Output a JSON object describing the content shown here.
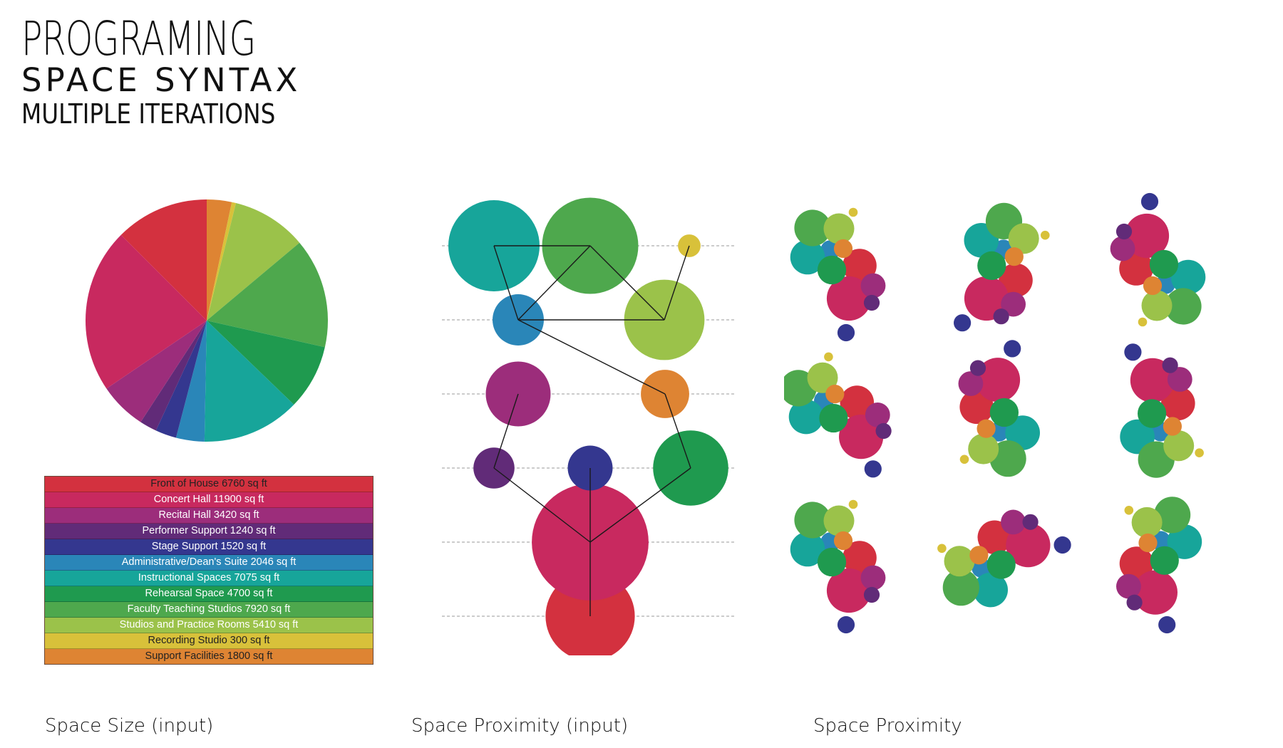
{
  "title": {
    "line1": "PROGRAMING",
    "line2": "SPACE SYNTAX",
    "line3": "MULTIPLE ITERATIONS"
  },
  "captions": {
    "size": "Space Size (input)",
    "proximity_input": "Space Proximity (input)",
    "proximity": "Space Proximity"
  },
  "spaces": [
    {
      "label": "Front of House 6760 sq ft",
      "area": 6760,
      "color": "#d3313f",
      "text_color": "#222222"
    },
    {
      "label": "Concert Hall 11900 sq ft",
      "area": 11900,
      "color": "#c8295f",
      "text_color": "#ffffff"
    },
    {
      "label": "Recital Hall 3420 sq ft",
      "area": 3420,
      "color": "#9c2d7b",
      "text_color": "#ffffff"
    },
    {
      "label": "Performer Support 1240 sq ft",
      "area": 1240,
      "color": "#612b78",
      "text_color": "#ffffff"
    },
    {
      "label": "Stage Support 1520 sq ft",
      "area": 1520,
      "color": "#34378f",
      "text_color": "#ffffff"
    },
    {
      "label": "Administrative/Dean's Suite 2046 sq ft",
      "area": 2046,
      "color": "#2a86b8",
      "text_color": "#ffffff"
    },
    {
      "label": "Instructional Spaces 7075 sq ft",
      "area": 7075,
      "color": "#17a59a",
      "text_color": "#ffffff"
    },
    {
      "label": "Rehearsal Space 4700 sq ft",
      "area": 4700,
      "color": "#1f9a4f",
      "text_color": "#ffffff"
    },
    {
      "label": "Faculty Teaching Studios 7920 sq ft",
      "area": 7920,
      "color": "#4ea84d",
      "text_color": "#ffffff"
    },
    {
      "label": "Studios and Practice Rooms 5410 sq ft",
      "area": 5410,
      "color": "#9bc24a",
      "text_color": "#ffffff"
    },
    {
      "label": "Recording Studio 300 sq ft",
      "area": 300,
      "color": "#d8c13a",
      "text_color": "#222222"
    },
    {
      "label": "Support Facilities 1800 sq ft",
      "area": 1800,
      "color": "#de8433",
      "text_color": "#222222"
    }
  ],
  "pie_order_clockwise_from_top": [
    11,
    10,
    9,
    8,
    7,
    6,
    5,
    4,
    3,
    2,
    1,
    0
  ],
  "proximity_graph": {
    "links": [
      [
        6,
        8
      ],
      [
        6,
        5
      ],
      [
        8,
        5
      ],
      [
        8,
        9
      ],
      [
        10,
        9
      ],
      [
        5,
        9
      ],
      [
        5,
        11
      ],
      [
        11,
        7
      ],
      [
        2,
        3
      ],
      [
        3,
        1
      ],
      [
        4,
        1
      ],
      [
        7,
        1
      ],
      [
        1,
        0
      ]
    ]
  },
  "iterations_count": 9
}
